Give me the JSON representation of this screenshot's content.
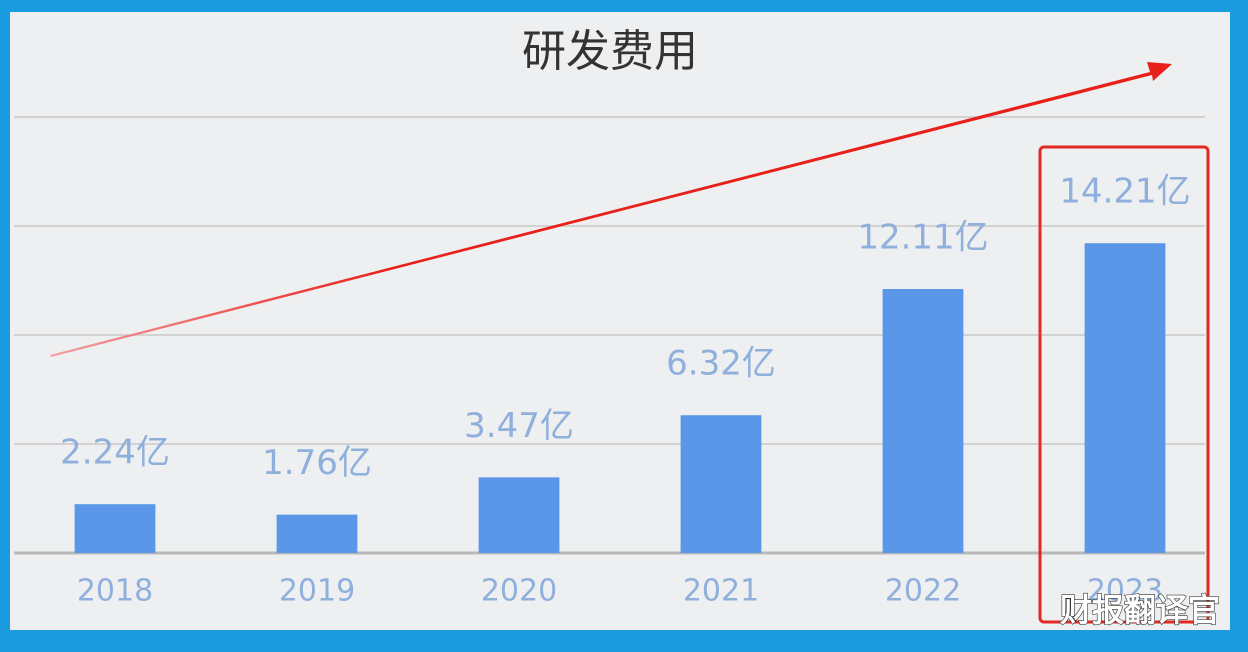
{
  "chart_data": {
    "type": "bar",
    "title": "研发费用",
    "categories": [
      "2018",
      "2019",
      "2020",
      "2021",
      "2022",
      "2023"
    ],
    "values": [
      2.24,
      1.76,
      3.47,
      6.32,
      12.11,
      14.21
    ],
    "value_labels": [
      "2.24亿",
      "1.76亿",
      "3.47亿",
      "6.32亿",
      "12.11亿",
      "14.21亿"
    ],
    "color": "#5b97e8",
    "ylim": [
      0,
      20
    ],
    "yticks": [
      0,
      5,
      10,
      15,
      20
    ],
    "grid": true,
    "watermark": "财报翻译官"
  }
}
